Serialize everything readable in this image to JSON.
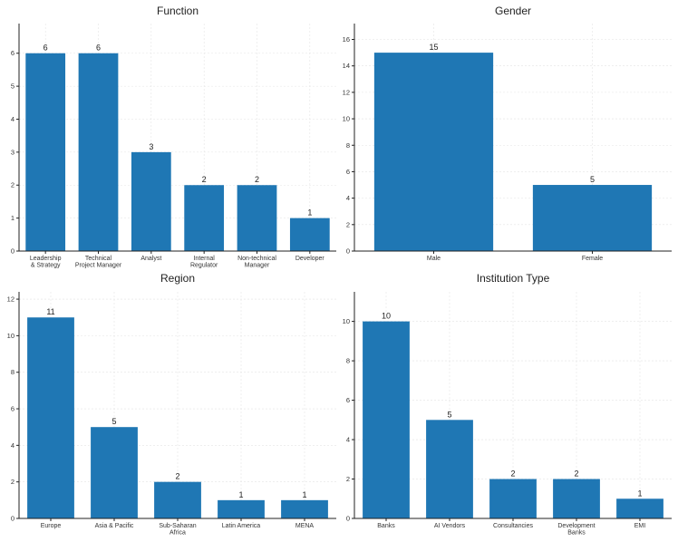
{
  "colors": {
    "bar": "#1f77b4",
    "axis": "#222222",
    "grid": "#e4e4e4"
  },
  "chart_data": [
    {
      "type": "bar",
      "title": "Function",
      "categories": [
        [
          "Leadership",
          "& Strategy"
        ],
        [
          "Technical",
          "Project Manager"
        ],
        [
          "Analyst"
        ],
        [
          "Internal",
          "Regulator"
        ],
        [
          "Non-technical",
          "Manager"
        ],
        [
          "Developer"
        ]
      ],
      "values": [
        6,
        6,
        3,
        2,
        2,
        1
      ],
      "ylim": [
        0,
        6.9
      ],
      "yticks": [
        0,
        1,
        2,
        3,
        4,
        5,
        6
      ],
      "grid": true,
      "xlabel": "",
      "ylabel": ""
    },
    {
      "type": "bar",
      "title": "Gender",
      "categories": [
        [
          "Male"
        ],
        [
          "Female"
        ]
      ],
      "values": [
        15,
        5
      ],
      "ylim": [
        0,
        17.2
      ],
      "yticks": [
        0,
        2,
        4,
        6,
        8,
        10,
        12,
        14,
        16
      ],
      "grid": true,
      "xlabel": "",
      "ylabel": ""
    },
    {
      "type": "bar",
      "title": "Region",
      "categories": [
        [
          "Europe"
        ],
        [
          "Asia & Pacific"
        ],
        [
          "Sub-Saharan",
          "Africa"
        ],
        [
          "Latin America"
        ],
        [
          "MENA"
        ]
      ],
      "values": [
        11,
        5,
        2,
        1,
        1
      ],
      "ylim": [
        0,
        12.4
      ],
      "yticks": [
        0,
        2,
        4,
        6,
        8,
        10,
        12
      ],
      "grid": true,
      "xlabel": "",
      "ylabel": ""
    },
    {
      "type": "bar",
      "title": "Institution Type",
      "categories": [
        [
          "Banks"
        ],
        [
          "AI Vendors"
        ],
        [
          "Consultancies"
        ],
        [
          "Development",
          "Banks"
        ],
        [
          "EMI"
        ]
      ],
      "values": [
        10,
        5,
        2,
        2,
        1
      ],
      "ylim": [
        0,
        11.5
      ],
      "yticks": [
        0,
        2,
        4,
        6,
        8,
        10
      ],
      "grid": true,
      "xlabel": "",
      "ylabel": ""
    }
  ]
}
